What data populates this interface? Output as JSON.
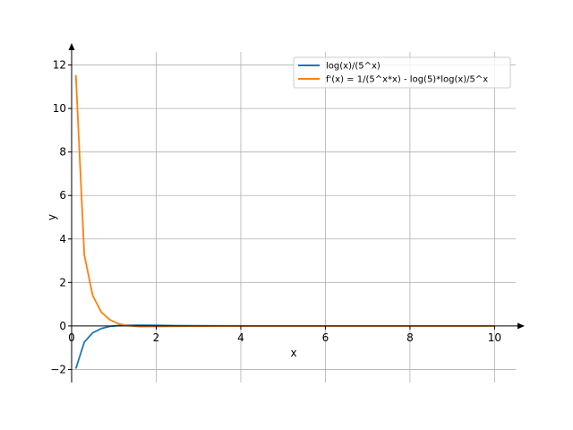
{
  "chart_data": {
    "type": "line",
    "xlabel": "x",
    "ylabel": "y",
    "xlim": [
      0,
      10.5
    ],
    "ylim": [
      -2.6,
      12.6
    ],
    "xticks": [
      0,
      2,
      4,
      6,
      8,
      10
    ],
    "yticks": [
      -2,
      0,
      2,
      4,
      6,
      8,
      10,
      12
    ],
    "xtick_labels": [
      "0",
      "2",
      "4",
      "6",
      "8",
      "10"
    ],
    "ytick_labels": [
      "−2",
      "0",
      "2",
      "4",
      "6",
      "8",
      "10",
      "12"
    ],
    "grid": true,
    "legend_position": "top-right",
    "series": [
      {
        "name": "log(x)/(5^x)",
        "color": "#1f77b4",
        "x": [
          0.1,
          0.3,
          0.5,
          0.7,
          0.9,
          1.1,
          1.3,
          1.6,
          2,
          2.5,
          3,
          4,
          5,
          6,
          7,
          8,
          9,
          10
        ],
        "y": [
          -1.96,
          -0.74,
          -0.31,
          -0.12,
          -0.02,
          0.016,
          0.032,
          0.036,
          0.028,
          0.0164,
          0.0088,
          0.0022,
          0.0005,
          0.0001,
          0,
          0,
          0,
          0
        ]
      },
      {
        "name": "f'(x) = 1/(5^x*x) - log(5)*log(x)/5^x",
        "color": "#ff7f0e",
        "x": [
          0.1,
          0.3,
          0.5,
          0.7,
          0.9,
          1.1,
          1.3,
          1.6,
          2,
          2.5,
          3,
          4,
          5,
          6,
          7,
          8,
          9,
          10
        ],
        "y": [
          11.54,
          3.26,
          1.39,
          0.64,
          0.29,
          0.108,
          0.022,
          -0.029,
          -0.025,
          -0.0137,
          -0.0069,
          -0.0015,
          -0.0003,
          -0.0001,
          0,
          0,
          0,
          0
        ]
      }
    ]
  }
}
